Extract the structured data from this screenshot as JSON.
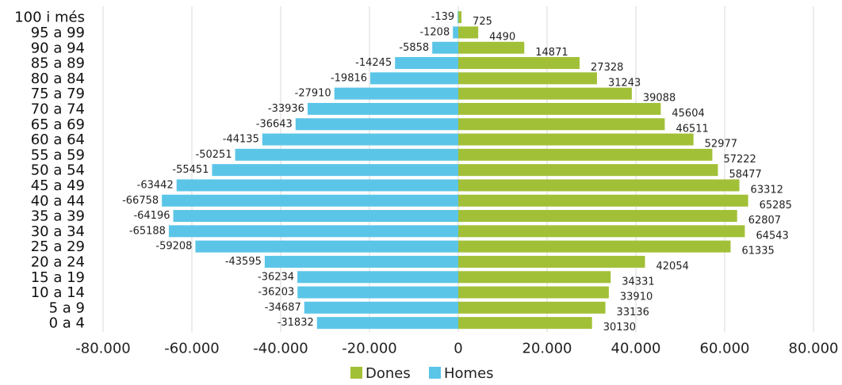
{
  "chart_data": {
    "type": "bar",
    "orientation": "horizontal",
    "categories": [
      "0 a 4",
      "5 a 9",
      "10 a 14",
      "15 a 19",
      "20 a 24",
      "25 a 29",
      "30 a 34",
      "35 a 39",
      "40 a 44",
      "45 a 49",
      "50 a 54",
      "55 a 59",
      "60 a 64",
      "65 a 69",
      "70 a 74",
      "75 a 79",
      "80 a 84",
      "85 a 89",
      "90 a 94",
      "95 a 99",
      "100 i més"
    ],
    "series": [
      {
        "name": "Dones",
        "color": "#a2c037",
        "values": [
          30130,
          33136,
          33910,
          34331,
          42054,
          61335,
          64543,
          62807,
          65285,
          63312,
          58477,
          57222,
          52977,
          46511,
          45604,
          39088,
          31243,
          27328,
          14871,
          4490,
          725
        ]
      },
      {
        "name": "Homes",
        "color": "#5bc5e8",
        "values": [
          -31832,
          -34687,
          -36203,
          -36234,
          -43595,
          -59208,
          -65188,
          -64196,
          -66758,
          -63442,
          -55451,
          -50251,
          -44135,
          -36643,
          -33936,
          -27910,
          -19816,
          -14245,
          -5858,
          -1208,
          -139
        ]
      }
    ],
    "xlim": [
      -80000,
      80000
    ],
    "xticks": [
      -80000,
      -60000,
      -40000,
      -20000,
      0,
      20000,
      40000,
      60000,
      80000
    ],
    "xtick_labels": [
      "-80.000",
      "-60.000",
      "-40.000",
      "-20.000",
      "0",
      "20.000",
      "40.000",
      "60.000",
      "80.000"
    ],
    "grid": "vertical",
    "legend": {
      "position": "bottom",
      "items": [
        "Dones",
        "Homes"
      ]
    },
    "title": "",
    "xlabel": "",
    "ylabel": ""
  }
}
